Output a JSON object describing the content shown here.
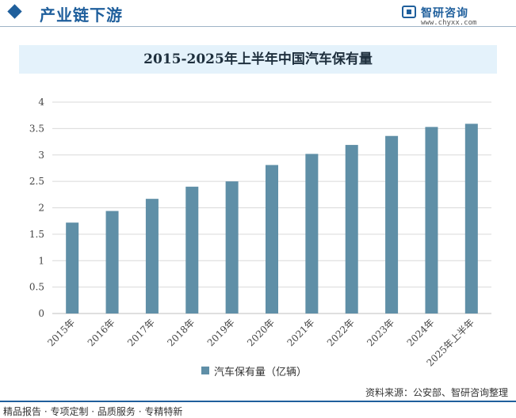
{
  "header": {
    "section_title": "产业链下游",
    "logo_name": "智研咨询",
    "logo_url": "www.chyxx.com"
  },
  "footer": {
    "tagline": "精品报告 · 专项定制 · 品质服务 · 专精特新",
    "source": "资料来源：公安部、智研咨询整理"
  },
  "colors": {
    "accent": "#1f5f9c",
    "bar": "#5f8fa7",
    "title_band": "#e4f2fb",
    "grid": "#d9d9d9"
  },
  "chart_data": {
    "type": "bar",
    "title": "2015-2025年上半年中国汽车保有量",
    "categories": [
      "2015年",
      "2016年",
      "2017年",
      "2018年",
      "2019年",
      "2020年",
      "2021年",
      "2022年",
      "2023年",
      "2024年",
      "2025年上半年"
    ],
    "series": [
      {
        "name": "汽车保有量（亿辆）",
        "values": [
          1.72,
          1.94,
          2.17,
          2.4,
          2.5,
          2.81,
          3.02,
          3.19,
          3.36,
          3.53,
          3.59
        ]
      }
    ],
    "ylim": [
      0,
      4
    ],
    "yticks": [
      "0",
      "0.5",
      "1",
      "1.5",
      "2",
      "2.5",
      "3",
      "3.5",
      "4"
    ],
    "grid": true,
    "legend_position": "bottom"
  }
}
